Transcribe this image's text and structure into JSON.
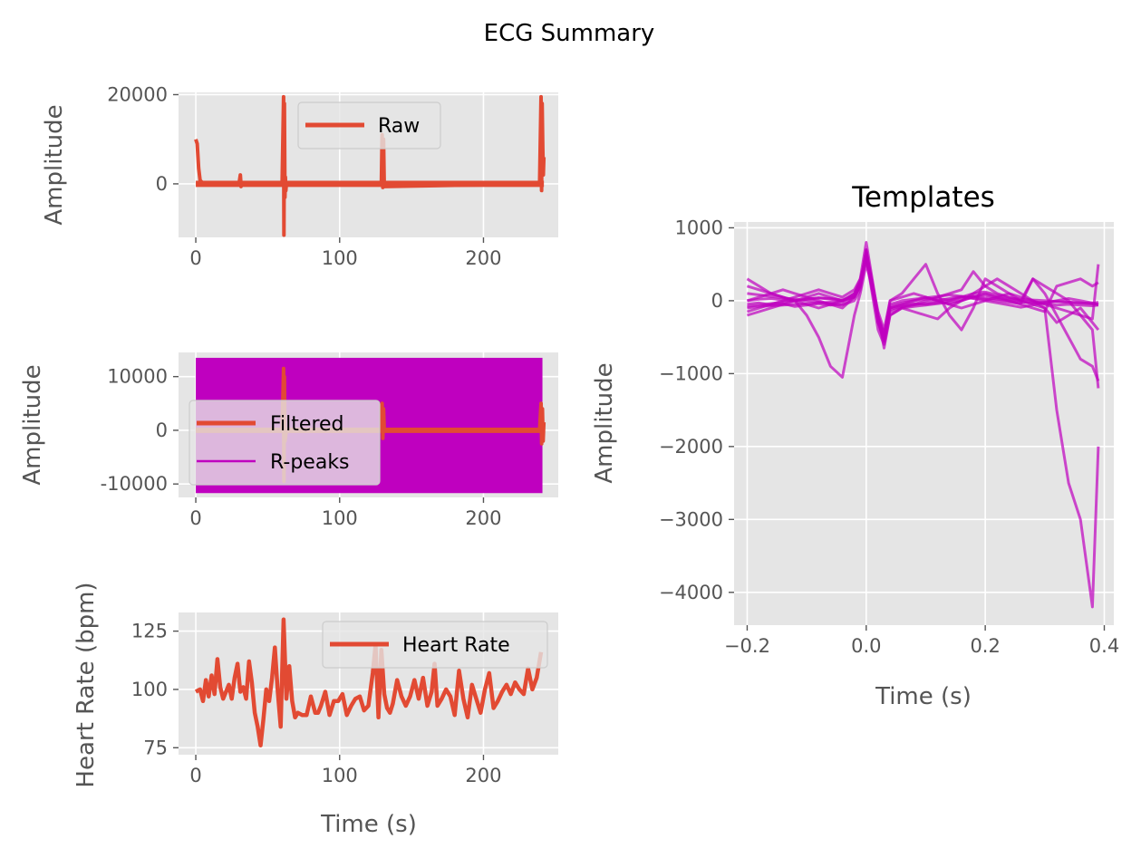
{
  "figure": {
    "suptitle": "ECG Summary"
  },
  "colors": {
    "raw": "#e24a33",
    "rpeak": "#bf00bf",
    "template": "#bf00bf",
    "axes_bg": "#e5e5e5",
    "tick": "#555555"
  },
  "chart_data": [
    {
      "id": "raw",
      "type": "line",
      "title": "",
      "xlabel": "",
      "ylabel": "Amplitude",
      "xlim": [
        -12,
        252
      ],
      "ylim": [
        -12000,
        20500
      ],
      "xticks": [
        0,
        100,
        200
      ],
      "yticks": [
        0,
        20000
      ],
      "grid": true,
      "legend_loc": "upper center",
      "series": [
        {
          "name": "Raw",
          "baseline_band": [
            -700,
            700
          ],
          "x": [
            0,
            1,
            2,
            3,
            5,
            8,
            30,
            31,
            31.5,
            32,
            60,
            61,
            61.3,
            61.6,
            62,
            62.3,
            62.6,
            63,
            129,
            129.5,
            130,
            130.5,
            131,
            239,
            240,
            240.4,
            240.8,
            241.2,
            241.6,
            242
          ],
          "y": [
            10000,
            9000,
            3500,
            800,
            100,
            0,
            0,
            2000,
            -600,
            0,
            0,
            19500,
            -11500,
            18000,
            -3000,
            1500,
            -1500,
            0,
            0,
            11000,
            -800,
            10000,
            -600,
            0,
            19500,
            -1500,
            18000,
            8000,
            2000,
            6000
          ]
        }
      ]
    },
    {
      "id": "filtered",
      "type": "line",
      "title": "",
      "xlabel": "",
      "ylabel": "Amplitude",
      "xlim": [
        -12,
        252
      ],
      "ylim": [
        -12500,
        14500
      ],
      "xticks": [
        0,
        100,
        200
      ],
      "yticks": [
        -10000,
        0,
        10000
      ],
      "grid": true,
      "legend_loc": "center left",
      "series": [
        {
          "name": "Filtered",
          "baseline_band": [
            -500,
            500
          ],
          "x": [
            0,
            60,
            61,
            61.3,
            61.6,
            62,
            63,
            129,
            129.5,
            130,
            130.5,
            131,
            239,
            240,
            240.5,
            241,
            241.5,
            242
          ],
          "y": [
            0,
            0,
            11500,
            -9500,
            10000,
            -2000,
            0,
            0,
            5000,
            -1500,
            4000,
            0,
            0,
            5000,
            -2500,
            4000,
            -2000,
            1500
          ]
        },
        {
          "name": "R-peaks",
          "kind": "vertical-lines",
          "x_range": [
            0,
            241
          ],
          "y_span": [
            -11700,
            13500
          ]
        }
      ]
    },
    {
      "id": "heart-rate",
      "type": "line",
      "title": "",
      "xlabel": "Time (s)",
      "ylabel": "Heart Rate (bpm)",
      "xlim": [
        -12,
        252
      ],
      "ylim": [
        72,
        133
      ],
      "xticks": [
        0,
        100,
        200
      ],
      "yticks": [
        75,
        100,
        125
      ],
      "grid": true,
      "legend_loc": "upper right",
      "series": [
        {
          "name": "Heart Rate",
          "x": [
            0,
            3,
            5,
            7,
            9,
            11,
            13,
            15,
            17,
            19,
            21,
            23,
            25,
            27,
            29,
            31,
            33,
            35,
            37,
            39,
            41,
            43,
            45,
            47,
            49,
            51,
            53,
            55,
            57,
            59,
            61,
            63,
            65,
            67,
            69,
            71,
            74,
            77,
            80,
            83,
            85,
            87,
            90,
            93,
            96,
            99,
            102,
            105,
            108,
            111,
            114,
            117,
            120,
            123,
            125,
            127,
            129,
            131,
            133,
            135,
            137,
            140,
            143,
            146,
            149,
            152,
            155,
            158,
            161,
            164,
            166,
            168,
            171,
            174,
            177,
            180,
            183,
            186,
            189,
            192,
            195,
            198,
            201,
            204,
            207,
            210,
            213,
            216,
            219,
            222,
            225,
            228,
            231,
            234,
            237,
            240
          ],
          "y": [
            99,
            100,
            95,
            104,
            97,
            106,
            98,
            113,
            101,
            96,
            99,
            102,
            96,
            105,
            111,
            99,
            101,
            96,
            112,
            103,
            90,
            84,
            76,
            87,
            100,
            95,
            105,
            118,
            99,
            84,
            130,
            96,
            110,
            95,
            88,
            90,
            89,
            89,
            97,
            90,
            90,
            93,
            99,
            89,
            95,
            95,
            98,
            89,
            93,
            96,
            97,
            91,
            93,
            107,
            119,
            88,
            117,
            98,
            92,
            90,
            94,
            104,
            97,
            93,
            97,
            104,
            96,
            105,
            93,
            99,
            111,
            93,
            96,
            100,
            97,
            89,
            108,
            96,
            88,
            102,
            96,
            90,
            100,
            107,
            92,
            95,
            99,
            102,
            98,
            103,
            100,
            98,
            109,
            100,
            105,
            116
          ]
        }
      ]
    },
    {
      "id": "templates",
      "type": "line",
      "title": "Templates",
      "xlabel": "Time (s)",
      "ylabel": "Amplitude",
      "xlim": [
        -0.222,
        0.416
      ],
      "ylim": [
        -4450,
        1080
      ],
      "xticks": [
        -0.2,
        0.0,
        0.2,
        0.4
      ],
      "xtick_labels": [
        "−0.2",
        "0.0",
        "0.2",
        "0.4"
      ],
      "yticks": [
        -4000,
        -3000,
        -2000,
        -1000,
        0,
        1000
      ],
      "ytick_labels": [
        "−4000",
        "−3000",
        "−2000",
        "−1000",
        "0",
        "1000"
      ],
      "grid": true,
      "t": [
        -0.2,
        -0.18,
        -0.16,
        -0.14,
        -0.12,
        -0.1,
        -0.08,
        -0.06,
        -0.04,
        -0.02,
        -0.01,
        0.0,
        0.01,
        0.02,
        0.03,
        0.04,
        0.06,
        0.08,
        0.1,
        0.12,
        0.14,
        0.16,
        0.18,
        0.2,
        0.22,
        0.24,
        0.26,
        0.28,
        0.3,
        0.32,
        0.34,
        0.36,
        0.38,
        0.39
      ],
      "series": [
        {
          "values": [
            -50,
            -30,
            -60,
            -40,
            -80,
            -60,
            -40,
            -60,
            -50,
            50,
            200,
            700,
            200,
            -300,
            -550,
            -100,
            -60,
            -40,
            -50,
            -30,
            0,
            40,
            60,
            40,
            20,
            0,
            -20,
            -30,
            -20,
            -10,
            -20,
            -30,
            -40,
            -50
          ]
        },
        {
          "values": [
            -100,
            -80,
            -70,
            -60,
            -50,
            -40,
            -30,
            -20,
            -10,
            100,
            300,
            800,
            300,
            -200,
            -650,
            -200,
            -100,
            -80,
            -60,
            -40,
            -20,
            0,
            60,
            80,
            40,
            20,
            0,
            -20,
            -40,
            -60,
            -50,
            -60,
            -70,
            -60
          ]
        },
        {
          "values": [
            0,
            20,
            30,
            10,
            0,
            20,
            40,
            30,
            10,
            80,
            250,
            650,
            250,
            -250,
            -500,
            -80,
            -30,
            0,
            20,
            30,
            10,
            50,
            100,
            120,
            80,
            40,
            20,
            10,
            0,
            -10,
            -20,
            -30,
            -40,
            -20
          ]
        },
        {
          "values": [
            300,
            200,
            100,
            50,
            0,
            -200,
            -500,
            -900,
            -1050,
            -200,
            100,
            500,
            200,
            -300,
            -500,
            0,
            100,
            300,
            500,
            100,
            -200,
            -400,
            -100,
            300,
            200,
            100,
            0,
            300,
            200,
            100,
            0,
            -200,
            -400,
            -1200
          ]
        },
        {
          "values": [
            -150,
            -100,
            -50,
            0,
            50,
            100,
            150,
            100,
            50,
            150,
            300,
            600,
            100,
            -400,
            -600,
            -200,
            -100,
            -150,
            -200,
            -250,
            -100,
            0,
            100,
            200,
            300,
            200,
            100,
            0,
            -100,
            -1500,
            -2500,
            -3000,
            -4200,
            -2000
          ]
        },
        {
          "values": [
            100,
            80,
            60,
            40,
            20,
            0,
            -20,
            -40,
            -60,
            0,
            150,
            600,
            150,
            -250,
            -450,
            -50,
            0,
            20,
            40,
            60,
            80,
            60,
            40,
            20,
            0,
            -20,
            -40,
            300,
            100,
            -200,
            -500,
            -800,
            -900,
            -1100
          ]
        },
        {
          "values": [
            -200,
            -150,
            -100,
            -50,
            0,
            50,
            100,
            50,
            0,
            100,
            250,
            550,
            150,
            -200,
            -450,
            -100,
            -50,
            0,
            50,
            0,
            -50,
            -100,
            -50,
            0,
            50,
            100,
            50,
            0,
            -50,
            -100,
            -150,
            -200,
            -250,
            500
          ]
        },
        {
          "values": [
            200,
            150,
            100,
            50,
            0,
            -50,
            -100,
            -50,
            0,
            50,
            200,
            700,
            250,
            -150,
            -400,
            0,
            50,
            100,
            50,
            0,
            -50,
            0,
            50,
            100,
            50,
            0,
            -50,
            -100,
            -150,
            200,
            250,
            300,
            200,
            250
          ]
        },
        {
          "values": [
            0,
            50,
            100,
            150,
            100,
            50,
            0,
            -50,
            -100,
            50,
            220,
            620,
            200,
            -250,
            -520,
            -120,
            -80,
            -50,
            0,
            50,
            100,
            150,
            400,
            200,
            100,
            50,
            0,
            -50,
            -100,
            -300,
            -200,
            -100,
            -300,
            -400
          ]
        },
        {
          "values": [
            -80,
            -60,
            -40,
            -20,
            0,
            20,
            40,
            20,
            0,
            60,
            240,
            680,
            220,
            -280,
            -560,
            -150,
            -90,
            -60,
            -30,
            0,
            30,
            60,
            30,
            0,
            -30,
            -60,
            -90,
            -60,
            -30,
            0,
            30,
            0,
            -30,
            -60
          ]
        }
      ]
    }
  ]
}
